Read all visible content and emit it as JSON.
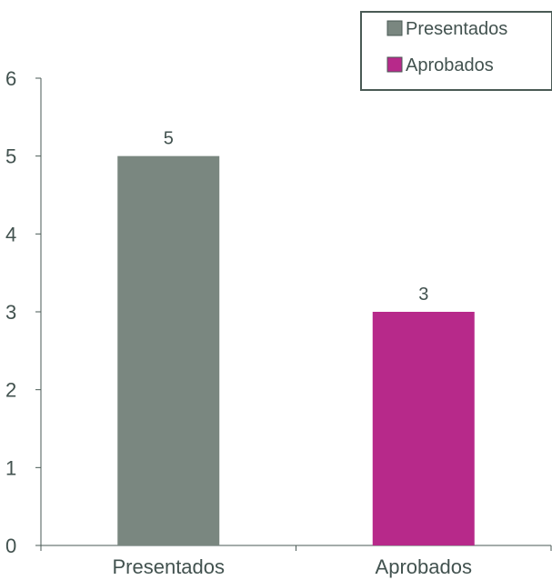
{
  "chart_data": {
    "type": "bar",
    "categories": [
      "Presentados",
      "Aprobados"
    ],
    "series": [
      {
        "name": "Presentados",
        "values": [
          5,
          null
        ],
        "color": "#7a8780"
      },
      {
        "name": "Aprobados",
        "values": [
          null,
          3
        ],
        "color": "#b7298a"
      }
    ],
    "y_ticks": [
      "0",
      "1",
      "2",
      "3",
      "4",
      "5",
      "6"
    ],
    "data_labels": [
      "5",
      "3"
    ],
    "ylim": [
      0,
      6
    ],
    "grid": false,
    "legend_position": "top-right"
  }
}
